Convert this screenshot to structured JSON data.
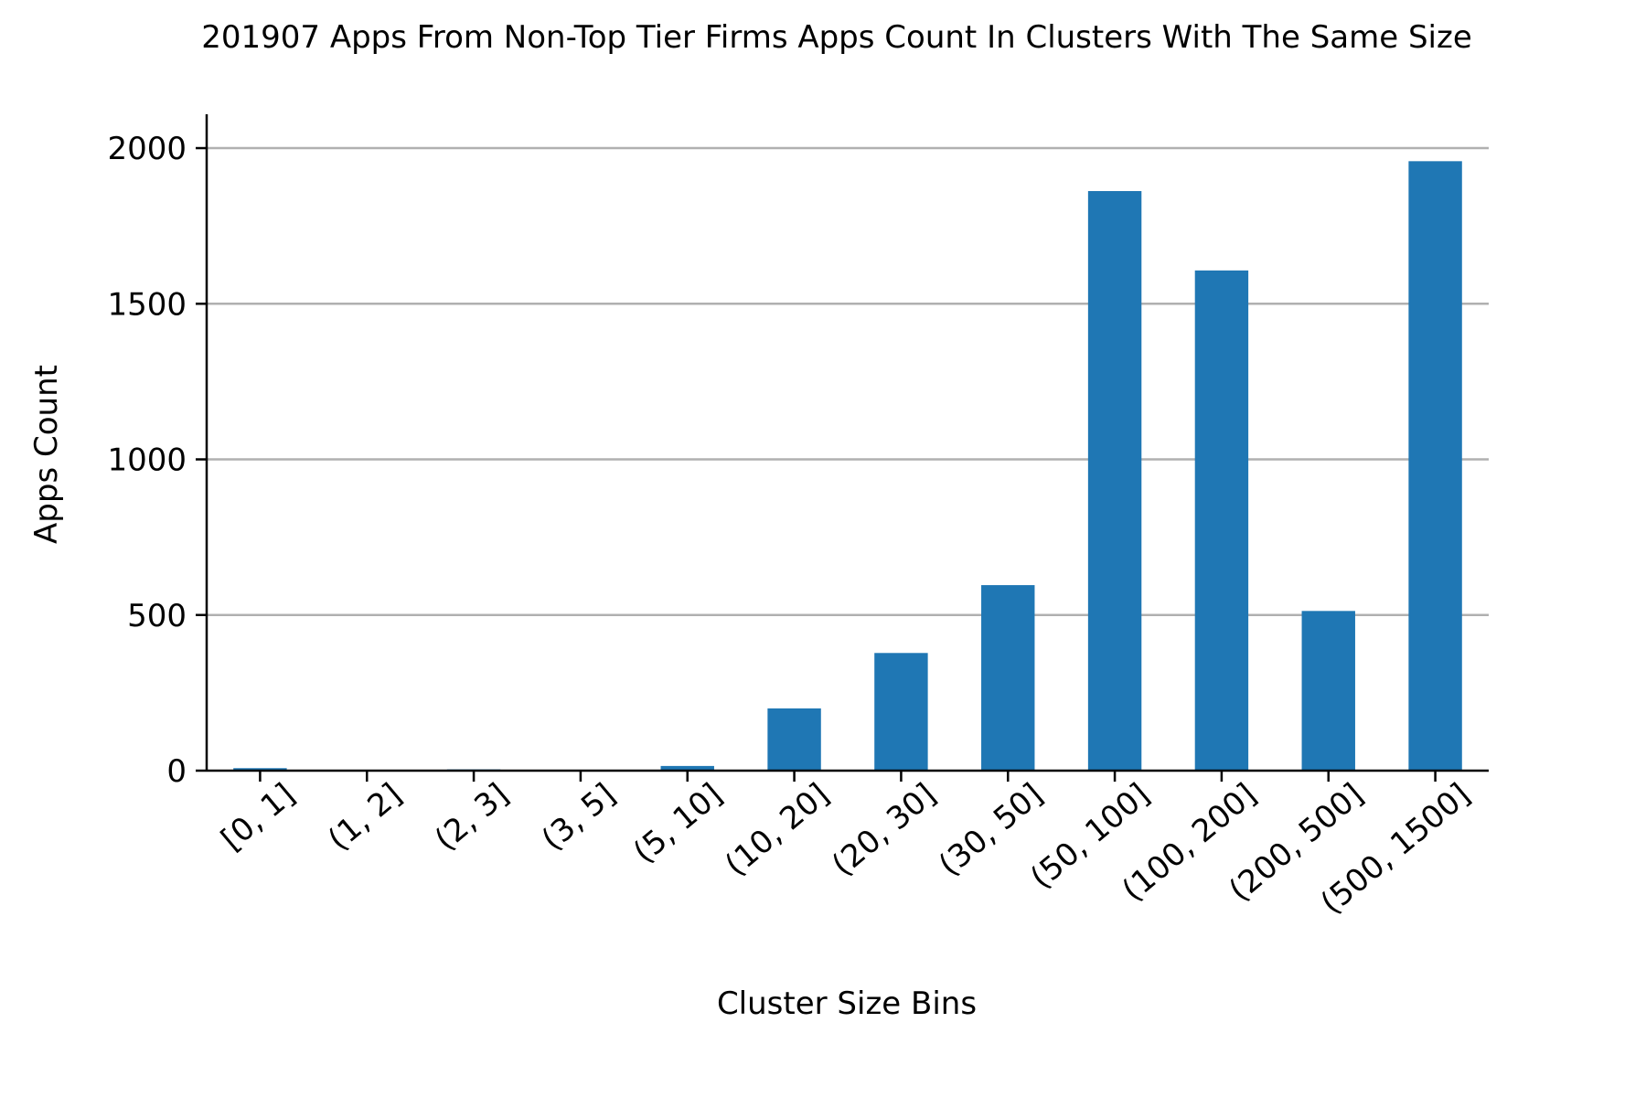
{
  "chart_data": {
    "type": "bar",
    "title": "201907 Apps From Non-Top Tier Firms Apps Count In Clusters With The Same Size",
    "xlabel": "Cluster Size Bins",
    "ylabel": "Apps Count",
    "categories": [
      "[0, 1]",
      "(1, 2]",
      "(2, 3]",
      "(3, 5]",
      "(5, 10]",
      "(10, 20]",
      "(20, 30]",
      "(30, 50]",
      "(50, 100]",
      "(100, 200]",
      "(200, 500]",
      "(500, 1500]"
    ],
    "values": [
      8,
      2,
      4,
      1,
      15,
      200,
      378,
      596,
      1862,
      1607,
      513,
      1958
    ],
    "ylim": [
      0,
      2050
    ],
    "yticks": [
      0,
      500,
      1000,
      1500,
      2000
    ],
    "grid": "horizontal",
    "legend": "none",
    "bar_color": "#1f77b4",
    "grid_color": "#b0b0b0"
  }
}
